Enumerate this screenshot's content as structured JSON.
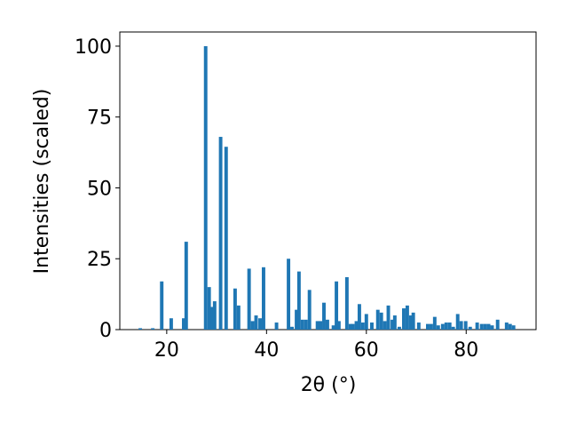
{
  "chart_data": {
    "type": "bar",
    "xlabel": "2θ (°)",
    "ylabel": "Intensities (scaled)",
    "color": "#1f77b4",
    "grid": false,
    "x": [
      14.7,
      17.2,
      19.0,
      20.9,
      23.4,
      23.9,
      27.8,
      28.5,
      29.1,
      29.6,
      30.8,
      31.9,
      33.7,
      34.4,
      36.5,
      37.2,
      37.9,
      38.7,
      39.4,
      42.0,
      44.4,
      45.1,
      46.0,
      46.5,
      47.2,
      47.9,
      48.6,
      50.2,
      50.8,
      51.5,
      52.2,
      53.4,
      54.0,
      54.5,
      56.1,
      56.8,
      57.3,
      58.0,
      58.6,
      59.3,
      60.0,
      61.1,
      62.3,
      63.0,
      63.7,
      64.4,
      65.2,
      65.7,
      66.6,
      67.5,
      68.2,
      68.9,
      69.4,
      70.5,
      72.3,
      73.0,
      73.7,
      74.4,
      75.3,
      76.0,
      76.7,
      77.4,
      78.3,
      79.0,
      79.9,
      80.8,
      82.2,
      83.1,
      83.8,
      84.5,
      85.2,
      86.3,
      88.1,
      88.8,
      89.5
    ],
    "values": [
      0.5,
      0.5,
      17,
      4,
      4,
      31,
      100,
      15,
      8,
      10,
      68,
      64.5,
      14.5,
      8.5,
      21.5,
      3,
      5,
      4,
      22,
      2.5,
      25,
      1,
      7,
      20.5,
      3.5,
      3.5,
      14,
      3,
      3,
      9.5,
      3.5,
      1.5,
      17,
      3,
      18.5,
      2,
      2,
      3,
      9,
      2.5,
      5.5,
      2.5,
      7,
      6,
      3,
      8.5,
      3.5,
      5,
      1,
      7.5,
      8.5,
      5,
      6,
      2.5,
      2,
      2,
      4.5,
      1.5,
      2,
      2.5,
      2.5,
      1,
      5.5,
      3,
      3,
      1,
      2.5,
      2,
      2,
      2,
      1.5,
      3.5,
      2.5,
      2,
      1.5
    ],
    "xlim": [
      10.6,
      94.0
    ],
    "ylim": [
      0,
      105
    ],
    "xticks": [
      20,
      40,
      60,
      80
    ],
    "yticks": [
      0,
      25,
      50,
      75,
      100
    ]
  }
}
